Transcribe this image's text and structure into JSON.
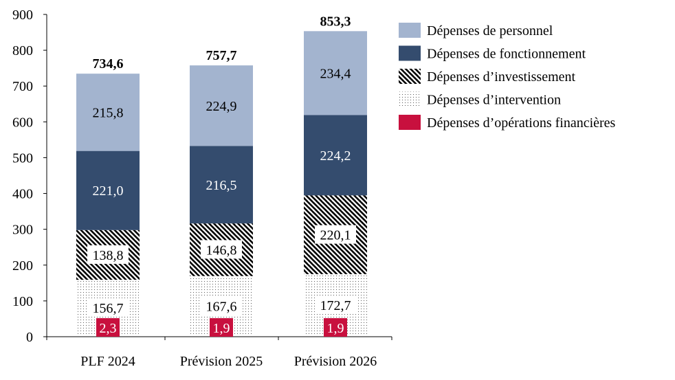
{
  "chart_data": {
    "type": "bar",
    "stacked": true,
    "categories": [
      "PLF 2024",
      "Prévision 2025",
      "Prévision 2026"
    ],
    "totals": [
      "734,6",
      "757,7",
      "853,3"
    ],
    "ylim": [
      0,
      900
    ],
    "yticks": [
      "0",
      "100",
      "200",
      "300",
      "400",
      "500",
      "600",
      "700",
      "800",
      "900"
    ],
    "grid": false,
    "legend_position": "right",
    "series": [
      {
        "name": "Dépenses d’opérations financières",
        "values": [
          2.3,
          1.9,
          1.9
        ],
        "labels": [
          "2,3",
          "1,9",
          "1,9"
        ],
        "color": "#c8103e",
        "pattern": "solid",
        "label_color": "#ffffff"
      },
      {
        "name": "Dépenses d’intervention",
        "values": [
          156.7,
          167.6,
          172.7
        ],
        "labels": [
          "156,7",
          "167,6",
          "172,7"
        ],
        "color": "#ffffff",
        "pattern": "dots",
        "label_color": "#000000"
      },
      {
        "name": "Dépenses d’investissement",
        "values": [
          138.8,
          146.8,
          220.1
        ],
        "labels": [
          "138,8",
          "146,8",
          "220,1"
        ],
        "color": "#ffffff",
        "pattern": "hatch",
        "label_color": "#000000"
      },
      {
        "name": "Dépenses de fonctionnement",
        "values": [
          221.0,
          216.5,
          224.2
        ],
        "labels": [
          "221,0",
          "216,5",
          "224,2"
        ],
        "color": "#344c6e",
        "pattern": "solid",
        "label_color": "#ffffff"
      },
      {
        "name": "Dépenses de personnel",
        "values": [
          215.8,
          224.9,
          234.4
        ],
        "labels": [
          "215,8",
          "224,9",
          "234,4"
        ],
        "color": "#a3b4cf",
        "pattern": "solid",
        "label_color": "#000000"
      }
    ],
    "legend_order": [
      "Dépenses de personnel",
      "Dépenses de fonctionnement",
      "Dépenses d’investissement",
      "Dépenses d’intervention",
      "Dépenses d’opérations financières"
    ]
  }
}
